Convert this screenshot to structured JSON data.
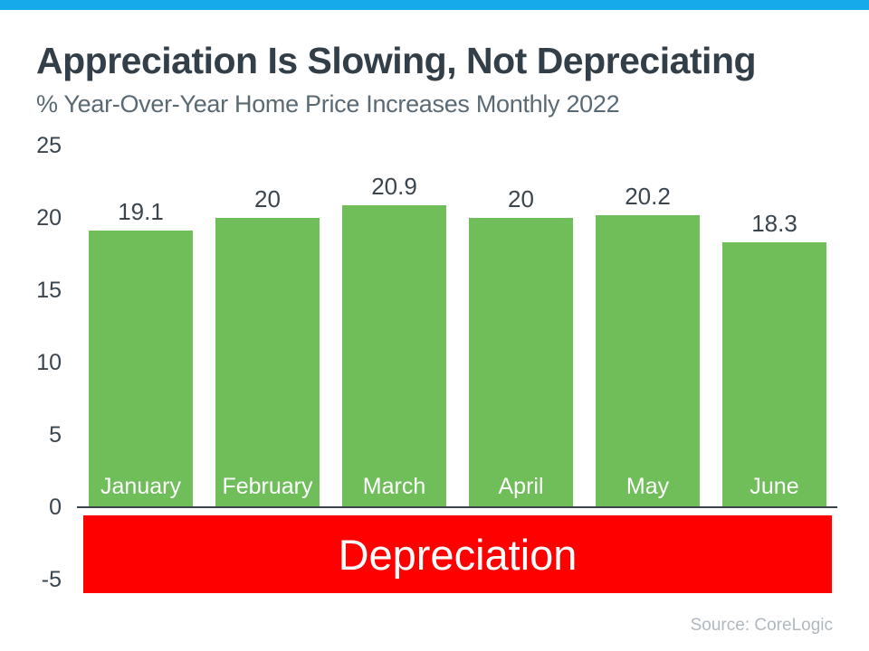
{
  "page": {
    "title": "Appreciation Is Slowing, Not Depreciating",
    "subtitle": "% Year-Over-Year Home Price Increases Monthly 2022",
    "source": "Source: CoreLogic"
  },
  "colors": {
    "top_accent_bar": "#17AAEA",
    "bar_green": "#6FBE5A",
    "depreciation_red": "#FF0000",
    "title_text": "#333F48",
    "subtitle_text": "#5A6A75",
    "axis_text": "#3B454E",
    "axis_line": "#3A434B",
    "source_text": "#B0B8BF",
    "bar_inner_label": "#FFFFFF"
  },
  "chart_data": {
    "type": "bar",
    "title": "Appreciation Is Slowing, Not Depreciating",
    "subtitle": "% Year-Over-Year Home Price Increases Monthly 2022",
    "categories": [
      "January",
      "February",
      "March",
      "April",
      "May",
      "June"
    ],
    "values": [
      19.1,
      20,
      20.9,
      20,
      20.2,
      18.3
    ],
    "value_labels": [
      "19.1",
      "20",
      "20.9",
      "20",
      "20.2",
      "18.3"
    ],
    "xlabel": "",
    "ylabel": "",
    "ylim": [
      -5,
      25
    ],
    "yticks": [
      25,
      20,
      15,
      10,
      5,
      0,
      -5
    ],
    "grid": false,
    "legend": false,
    "bar_color": "#6FBE5A",
    "annotation": {
      "label": "Depreciation",
      "region_y": [
        -5,
        0
      ],
      "color": "#FF0000"
    },
    "source": "Source: CoreLogic"
  }
}
